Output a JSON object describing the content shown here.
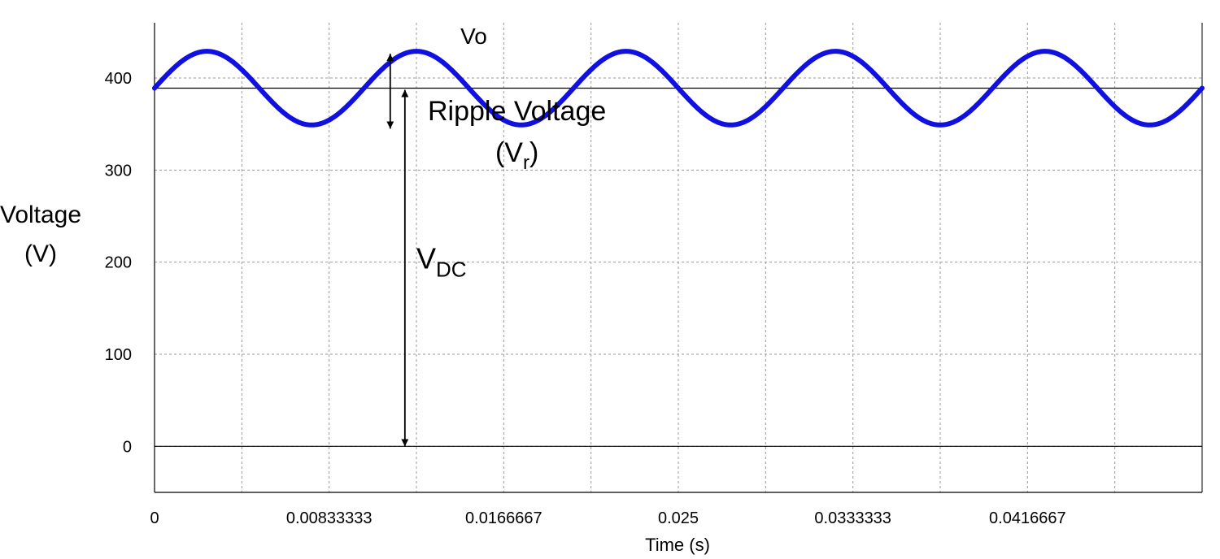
{
  "chart_data": {
    "type": "line",
    "title": "",
    "xlabel": "Time (s)",
    "ylabel": [
      "Voltage",
      "(V)"
    ],
    "xlim": [
      0,
      0.05
    ],
    "ylim": [
      -50,
      460
    ],
    "x_ticks": [
      {
        "value": 0,
        "label": "0"
      },
      {
        "value": 0.00833333,
        "label": "0.00833333"
      },
      {
        "value": 0.0166667,
        "label": "0.0166667"
      },
      {
        "value": 0.025,
        "label": "0.025"
      },
      {
        "value": 0.0333333,
        "label": "0.0333333"
      },
      {
        "value": 0.0416667,
        "label": "0.0416667"
      }
    ],
    "x_minor_gridlines": [
      0.00416667,
      0.0125,
      0.0208333,
      0.0291667,
      0.0375,
      0.0458333
    ],
    "y_ticks": [
      {
        "value": 0,
        "label": "0"
      },
      {
        "value": 100,
        "label": "100"
      },
      {
        "value": 200,
        "label": "200"
      },
      {
        "value": 300,
        "label": "300"
      },
      {
        "value": 400,
        "label": "400"
      }
    ],
    "grid": true,
    "series": [
      {
        "name": "Vo",
        "color": "#1010e0",
        "function": "sine",
        "dc_offset": 389,
        "amplitude": 40,
        "frequency_hz": 100,
        "phase_at_t0": 0,
        "t_start": 0,
        "t_end": 0.05
      }
    ],
    "reference_lines": [
      {
        "name": "vdc-level",
        "y": 389
      },
      {
        "name": "zero-level",
        "y": 0
      }
    ],
    "annotations": {
      "series_label": {
        "text": "Vo",
        "x": 0.0146,
        "y": 437
      },
      "ripple": {
        "line1": "Ripple Voltage",
        "line2_main": "(V",
        "line2_sub": "r",
        "line2_end": ")",
        "text_x": 0.0173,
        "text_y1": 354,
        "text_y2": 309,
        "arrow_x": 0.01125,
        "arrow_y_top": 429,
        "arrow_y_bottom": 345
      },
      "vdc": {
        "main": "V",
        "sub": "DC",
        "text_x": 0.0125,
        "text_y": 193,
        "arrow_x": 0.01195,
        "arrow_y_top": 389,
        "arrow_y_bottom": 0
      }
    }
  }
}
